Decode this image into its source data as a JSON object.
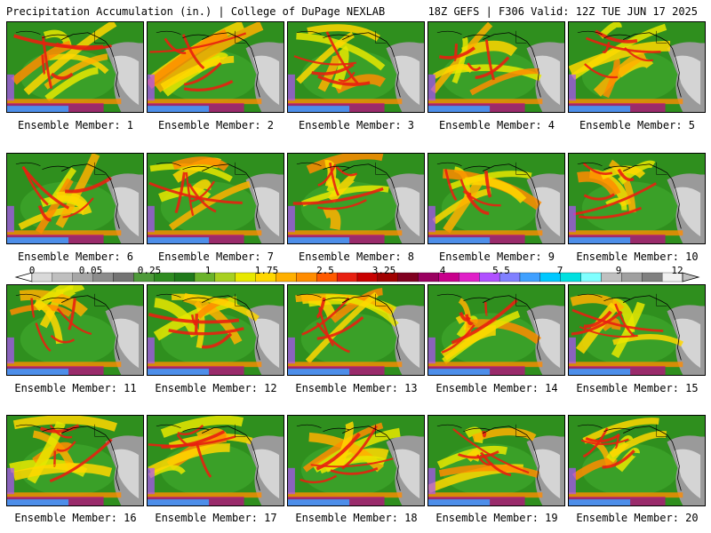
{
  "header": {
    "left": "Precipitation Accumulation (in.) | College of DuPage NEXLAB",
    "right": "18Z GEFS | F306 Valid: 12Z TUE JUN 17 2025"
  },
  "members": [
    "Ensemble Member: 1",
    "Ensemble Member: 2",
    "Ensemble Member: 3",
    "Ensemble Member: 4",
    "Ensemble Member: 5",
    "Ensemble Member: 6",
    "Ensemble Member: 7",
    "Ensemble Member: 8",
    "Ensemble Member: 9",
    "Ensemble Member: 10",
    "Ensemble Member: 11",
    "Ensemble Member: 12",
    "Ensemble Member: 13",
    "Ensemble Member: 14",
    "Ensemble Member: 15",
    "Ensemble Member: 16",
    "Ensemble Member: 17",
    "Ensemble Member: 18",
    "Ensemble Member: 19",
    "Ensemble Member: 20"
  ],
  "colorbar": {
    "labels": [
      "0",
      "0.05",
      "0.25",
      "1",
      "1.75",
      "2.5",
      "3.25",
      "4",
      "5.5",
      "7",
      "9",
      "12"
    ],
    "colors": [
      "#d9d9d9",
      "#bfbfbf",
      "#a6a6a6",
      "#8c8c8c",
      "#737373",
      "#4e9a3a",
      "#2e8b20",
      "#1f7a1a",
      "#6ab32a",
      "#a8d020",
      "#e8e800",
      "#ffd700",
      "#ffb000",
      "#ff8c00",
      "#ff5a00",
      "#e82010",
      "#c80000",
      "#a00000",
      "#800020",
      "#9a0060",
      "#c8008c",
      "#e020c8",
      "#b050ff",
      "#8080ff",
      "#40a0ff",
      "#00c8ff",
      "#00e0e0",
      "#80ffff",
      "#c0c0c0",
      "#a0a0a0",
      "#808080",
      "#f0f0f0"
    ]
  }
}
